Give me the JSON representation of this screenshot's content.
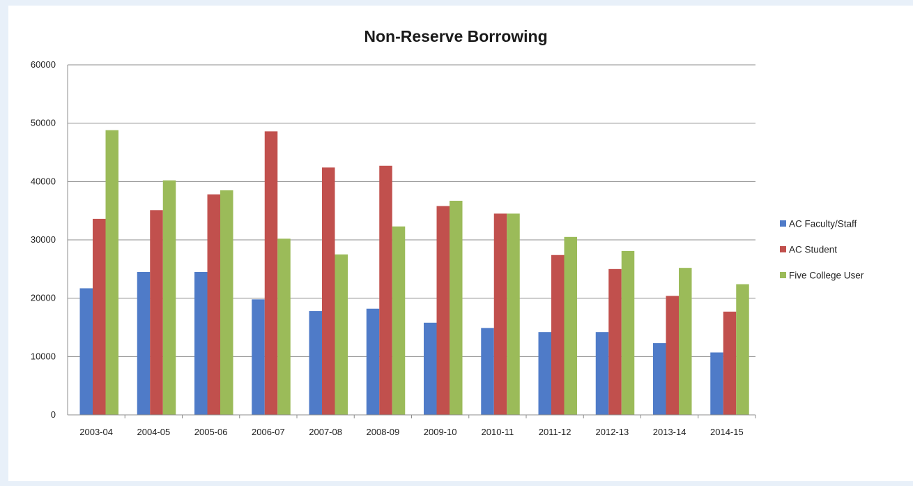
{
  "chart_data": {
    "type": "bar",
    "title": "Non-Reserve Borrowing",
    "xlabel": "",
    "ylabel": "",
    "ylim": [
      0,
      60000
    ],
    "yticks": [
      0,
      10000,
      20000,
      30000,
      40000,
      50000,
      60000
    ],
    "grid": true,
    "legend_position": "right",
    "categories": [
      "2003-04",
      "2004-05",
      "2005-06",
      "2006-07",
      "2007-08",
      "2008-09",
      "2009-10",
      "2010-11",
      "2011-12",
      "2012-13",
      "2013-14",
      "2014-15"
    ],
    "series": [
      {
        "name": "AC Faculty/Staff",
        "color": "#4f7bc8",
        "values": [
          21700,
          24500,
          24500,
          19800,
          17800,
          18200,
          15800,
          14900,
          14200,
          14200,
          12300,
          10700
        ]
      },
      {
        "name": "AC Student",
        "color": "#c1504d",
        "values": [
          33600,
          35100,
          37800,
          48600,
          42400,
          42700,
          35800,
          34500,
          27400,
          25000,
          20400,
          17700
        ]
      },
      {
        "name": "Five College User",
        "color": "#9bbb59",
        "values": [
          48800,
          40200,
          38500,
          30200,
          27500,
          32300,
          36700,
          34500,
          30500,
          28100,
          25200,
          22400
        ]
      }
    ]
  }
}
